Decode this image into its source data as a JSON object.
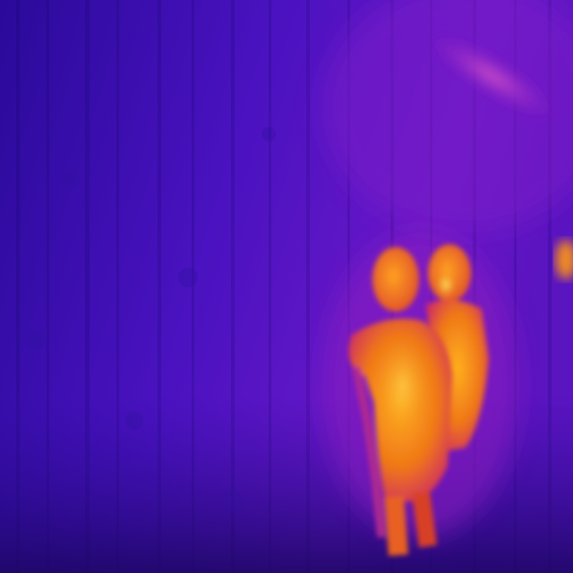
{
  "image": {
    "kind": "thermal-camera-frame",
    "palette": "ironbow",
    "subjects": [
      "person",
      "person"
    ],
    "colors": {
      "cold_deep": "#1a0a6e",
      "cold": "#3a10b8",
      "cool": "#6a18c8",
      "mid": "#a020b0",
      "warm": "#e8402a",
      "hot": "#f08a10",
      "hottest": "#ffd030"
    }
  }
}
